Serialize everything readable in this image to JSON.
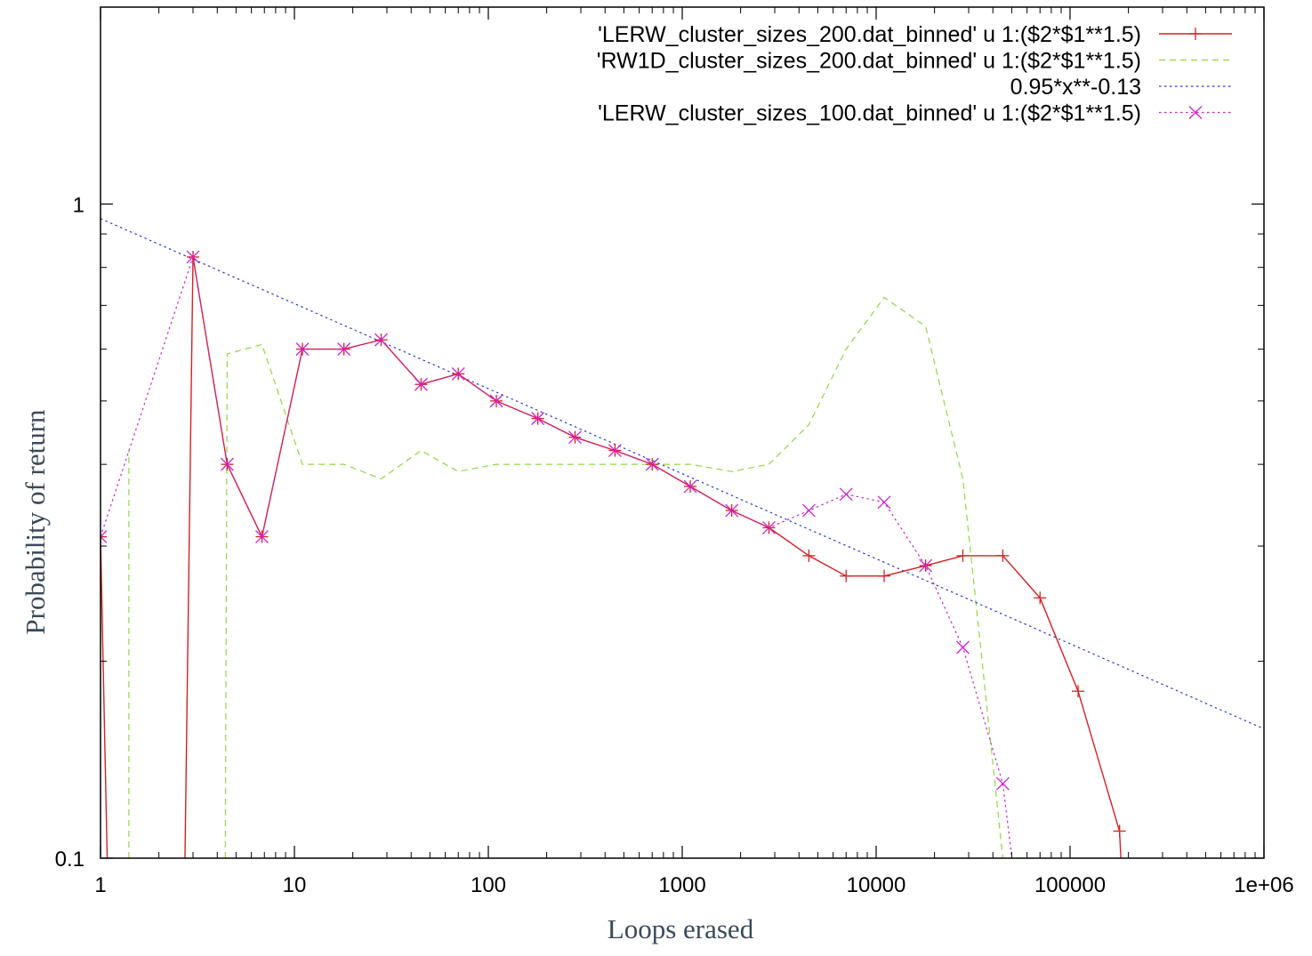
{
  "chart_data": {
    "type": "line",
    "xlabel": "Loops erased",
    "ylabel": "Probability of return",
    "x_scale": "log",
    "y_scale": "log",
    "xlim": [
      1,
      1000000
    ],
    "ylim": [
      0.1,
      2
    ],
    "x_ticks": [
      {
        "value": 1,
        "label": "1"
      },
      {
        "value": 10,
        "label": "10"
      },
      {
        "value": 100,
        "label": "100"
      },
      {
        "value": 1000,
        "label": "1000"
      },
      {
        "value": 10000,
        "label": "10000"
      },
      {
        "value": 100000,
        "label": "100000"
      },
      {
        "value": 1000000,
        "label": "1e+06"
      }
    ],
    "y_ticks": [
      {
        "value": 0.1,
        "label": "0.1"
      },
      {
        "value": 1,
        "label": "1"
      }
    ],
    "grid": false,
    "legend_position": "top-right",
    "series": [
      {
        "name": "'LERW_cluster_sizes_200.dat_binned' u 1:($2*$1**1.5)",
        "color": "#d62020",
        "line": "solid",
        "marker": "plus",
        "points": [
          [
            1,
            0.31
          ],
          [
            1.1,
            0.08
          ],
          [
            2.7,
            0.08
          ],
          [
            3,
            0.83
          ],
          [
            4.5,
            0.4
          ],
          [
            6.8,
            0.31
          ],
          [
            11,
            0.6
          ],
          [
            18,
            0.6
          ],
          [
            28,
            0.62
          ],
          [
            45,
            0.53
          ],
          [
            70,
            0.55
          ],
          [
            110,
            0.5
          ],
          [
            180,
            0.47
          ],
          [
            280,
            0.44
          ],
          [
            450,
            0.42
          ],
          [
            700,
            0.4
          ],
          [
            1100,
            0.37
          ],
          [
            1800,
            0.34
          ],
          [
            2800,
            0.32
          ],
          [
            4500,
            0.29
          ],
          [
            7000,
            0.27
          ],
          [
            11000,
            0.27
          ],
          [
            18000,
            0.28
          ],
          [
            28000,
            0.29
          ],
          [
            45000,
            0.29
          ],
          [
            70000,
            0.25
          ],
          [
            110000,
            0.18
          ],
          [
            180000,
            0.11
          ],
          [
            190000,
            0.08
          ]
        ]
      },
      {
        "name": "'RW1D_cluster_sizes_200.dat_binned' u 1:($2*$1**1.5)",
        "color": "#8fd840",
        "line": "dashed",
        "marker": "none",
        "segments": [
          [
            [
              1.4,
              0.1
            ],
            [
              1.4,
              0.42
            ]
          ],
          [
            [
              4.4,
              0.1
            ],
            [
              4.5,
              0.59
            ],
            [
              6.8,
              0.61
            ],
            [
              11,
              0.4
            ],
            [
              18,
              0.4
            ],
            [
              28,
              0.38
            ],
            [
              45,
              0.42
            ],
            [
              70,
              0.39
            ],
            [
              110,
              0.4
            ],
            [
              180,
              0.4
            ],
            [
              280,
              0.4
            ],
            [
              450,
              0.4
            ],
            [
              700,
              0.4
            ],
            [
              1100,
              0.4
            ],
            [
              1800,
              0.39
            ],
            [
              2800,
              0.4
            ],
            [
              4500,
              0.46
            ],
            [
              7000,
              0.6
            ],
            [
              11000,
              0.72
            ],
            [
              18000,
              0.65
            ],
            [
              28000,
              0.38
            ],
            [
              45000,
              0.1
            ]
          ]
        ]
      },
      {
        "name": "0.95*x**-0.13",
        "color": "#2a3ad0",
        "line": "dotted",
        "marker": "none",
        "function": {
          "a": 0.95,
          "b": -0.13
        }
      },
      {
        "name": "'LERW_cluster_sizes_100.dat_binned' u 1:($2*$1**1.5)",
        "color": "#d020d0",
        "line": "dotted",
        "marker": "cross",
        "points": [
          [
            1,
            0.31
          ],
          [
            3,
            0.83
          ],
          [
            4.5,
            0.4
          ],
          [
            6.8,
            0.31
          ],
          [
            11,
            0.6
          ],
          [
            18,
            0.6
          ],
          [
            28,
            0.62
          ],
          [
            45,
            0.53
          ],
          [
            70,
            0.55
          ],
          [
            110,
            0.5
          ],
          [
            180,
            0.47
          ],
          [
            280,
            0.44
          ],
          [
            450,
            0.42
          ],
          [
            700,
            0.4
          ],
          [
            1100,
            0.37
          ],
          [
            1800,
            0.34
          ],
          [
            2800,
            0.32
          ],
          [
            4500,
            0.34
          ],
          [
            7000,
            0.36
          ],
          [
            11000,
            0.35
          ],
          [
            18000,
            0.28
          ],
          [
            28000,
            0.21
          ],
          [
            45000,
            0.13
          ],
          [
            55000,
            0.08
          ]
        ]
      }
    ]
  }
}
